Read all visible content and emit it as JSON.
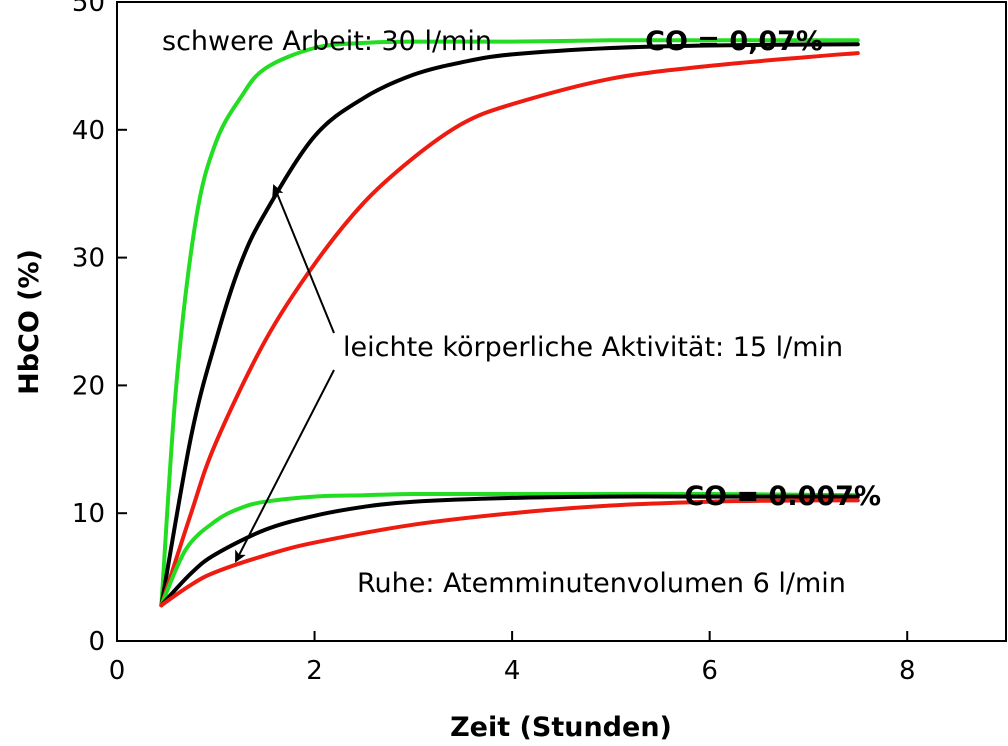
{
  "chart_data": {
    "type": "line",
    "xlabel": "Zeit (Stunden)",
    "ylabel": "HbCO (%)",
    "xlim": [
      0,
      9
    ],
    "ylim": [
      0,
      50
    ],
    "x_ticks": [
      0,
      2,
      4,
      6,
      8
    ],
    "y_ticks": [
      0,
      10,
      20,
      30,
      40,
      50
    ],
    "grid": false,
    "colors": {
      "green": "#22dd22",
      "black": "#000000",
      "red": "#ee1c10"
    },
    "series": [
      {
        "group": "CO = 0,07%",
        "color": "green",
        "x": [
          0.45,
          0.6,
          0.8,
          1.0,
          1.25,
          1.5,
          2.0,
          2.5,
          3.0,
          4.0,
          5.0,
          6.0,
          7.5
        ],
        "y": [
          2.8,
          20.0,
          33.0,
          39.0,
          42.5,
          44.8,
          46.4,
          46.8,
          46.9,
          46.9,
          47.0,
          47.0,
          47.0
        ]
      },
      {
        "group": "CO = 0,07%",
        "color": "black",
        "x": [
          0.45,
          0.75,
          1.0,
          1.25,
          1.5,
          2.0,
          2.5,
          3.0,
          3.5,
          4.0,
          5.0,
          6.0,
          7.5
        ],
        "y": [
          2.8,
          16.0,
          23.5,
          29.5,
          33.5,
          39.5,
          42.5,
          44.3,
          45.3,
          45.9,
          46.4,
          46.6,
          46.7
        ]
      },
      {
        "group": "CO = 0,07%",
        "color": "red",
        "x": [
          0.45,
          0.75,
          1.0,
          1.5,
          2.0,
          2.5,
          3.0,
          3.5,
          4.0,
          5.0,
          6.0,
          7.0,
          7.5
        ],
        "y": [
          2.8,
          10.0,
          15.5,
          23.5,
          29.5,
          34.3,
          37.8,
          40.5,
          42.0,
          44.0,
          45.0,
          45.7,
          46.0
        ]
      },
      {
        "group": "CO = 0.007%",
        "color": "green",
        "x": [
          0.45,
          0.7,
          1.0,
          1.25,
          1.5,
          2.0,
          2.5,
          3.0,
          4.0,
          5.0,
          6.0,
          7.5
        ],
        "y": [
          2.8,
          7.2,
          9.4,
          10.4,
          10.9,
          11.3,
          11.4,
          11.5,
          11.5,
          11.5,
          11.5,
          11.4
        ]
      },
      {
        "group": "CO = 0.007%",
        "color": "black",
        "x": [
          0.45,
          0.75,
          1.0,
          1.5,
          2.0,
          2.5,
          3.0,
          4.0,
          5.0,
          6.0,
          7.5
        ],
        "y": [
          2.8,
          5.3,
          6.8,
          8.7,
          9.8,
          10.5,
          10.9,
          11.2,
          11.3,
          11.3,
          11.3
        ]
      },
      {
        "group": "CO = 0.007%",
        "color": "red",
        "x": [
          0.45,
          0.75,
          1.0,
          1.5,
          2.0,
          3.0,
          4.0,
          5.0,
          6.0,
          7.0,
          7.5
        ],
        "y": [
          2.8,
          4.4,
          5.4,
          6.7,
          7.7,
          9.1,
          10.0,
          10.6,
          10.9,
          11.0,
          11.0
        ]
      }
    ],
    "annotations": {
      "heavy": "schwere Arbeit: 30 l/min",
      "co_high": "CO = 0,07%",
      "light": "leichte körperliche Aktivität: 15 l/min",
      "co_low": "CO = 0.007%",
      "rest": "Ruhe: Atemminutenvolumen 6 l/min"
    }
  }
}
